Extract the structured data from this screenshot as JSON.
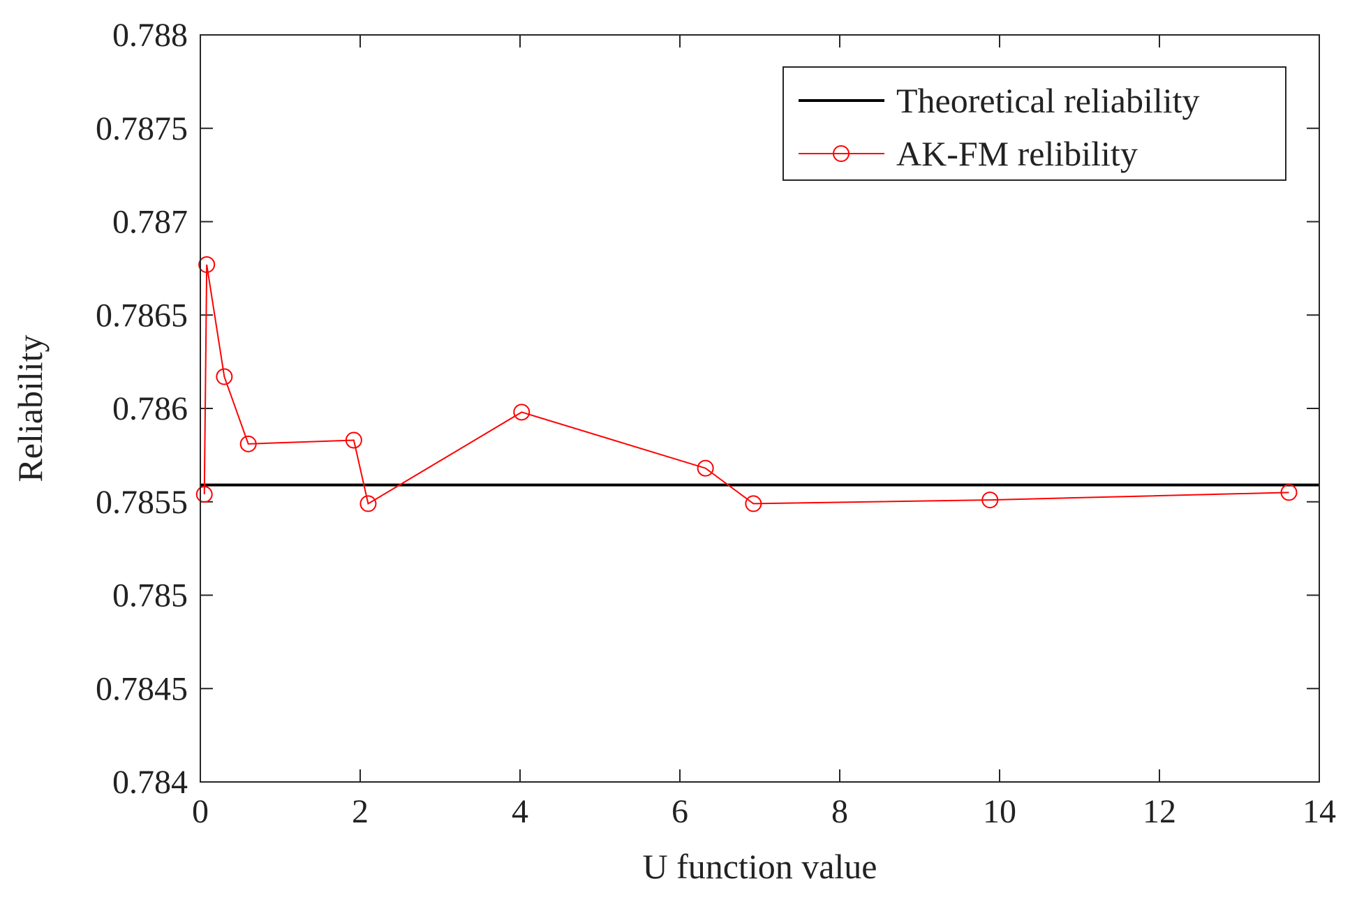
{
  "chart_data": {
    "type": "line",
    "xlabel": "U function value",
    "ylabel": "Reliability",
    "xlim": [
      0,
      14
    ],
    "ylim": [
      0.784,
      0.788
    ],
    "xticks": [
      0,
      2,
      4,
      6,
      8,
      10,
      12,
      14
    ],
    "yticks": [
      0.784,
      0.7845,
      0.785,
      0.7855,
      0.786,
      0.7865,
      0.787,
      0.7875,
      0.788
    ],
    "xtick_labels": [
      "0",
      "2",
      "4",
      "6",
      "8",
      "10",
      "12",
      "14"
    ],
    "ytick_labels": [
      "0.784",
      "0.7845",
      "0.785",
      "0.7855",
      "0.786",
      "0.7865",
      "0.787",
      "0.7875",
      "0.788"
    ],
    "grid": false,
    "legend_position": "top-right",
    "series": [
      {
        "name": "Theoretical reliability",
        "color": "#000000",
        "marker": "none",
        "x": [
          0,
          14
        ],
        "y": [
          0.78559,
          0.78559
        ]
      },
      {
        "name": "AK-FM relibility",
        "color": "#ff0000",
        "marker": "circle",
        "x": [
          0.05,
          0.08,
          0.3,
          0.6,
          1.92,
          2.1,
          4.02,
          6.32,
          6.92,
          9.88,
          13.62
        ],
        "y": [
          0.78554,
          0.78677,
          0.78617,
          0.78581,
          0.78583,
          0.78549,
          0.78598,
          0.78568,
          0.78549,
          0.78551,
          0.78555
        ]
      }
    ]
  }
}
